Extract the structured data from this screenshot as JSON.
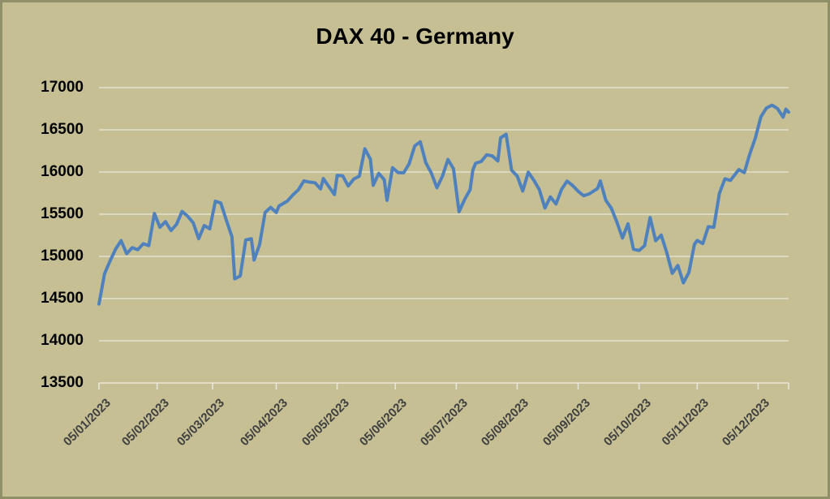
{
  "colors": {
    "background": "#c6bf94",
    "border": "#8f8f68",
    "gridline": "#e8e6da",
    "line": "#4f81bd",
    "title_text": "#000000",
    "y_label_text": "#000000",
    "x_label_text": "#3f3f3f"
  },
  "chart_data": {
    "type": "line",
    "title": "DAX 40 - Germany",
    "legend": "none",
    "grid": "horizontal",
    "y_axis": {
      "min": 13500,
      "max": 17000,
      "step": 500,
      "tick_labels": [
        "17000",
        "16500",
        "16000",
        "15500",
        "15000",
        "14500",
        "14000",
        "13500"
      ]
    },
    "x_axis": {
      "tick_labels": [
        "05/01/2023",
        "05/02/2023",
        "05/03/2023",
        "05/04/2023",
        "05/05/2023",
        "05/06/2023",
        "05/07/2023",
        "05/08/2023",
        "05/09/2023",
        "05/10/2023",
        "05/11/2023",
        "05/12/2023"
      ],
      "label_rotation_deg": -45,
      "date_format": "DD/MM/YYYY"
    },
    "x": [
      "05/01/2023",
      "09/01/2023",
      "11/01/2023",
      "13/01/2023",
      "17/01/2023",
      "19/01/2023",
      "23/01/2023",
      "25/01/2023",
      "27/01/2023",
      "31/01/2023",
      "02/02/2023",
      "06/02/2023",
      "08/02/2023",
      "10/02/2023",
      "14/02/2023",
      "16/02/2023",
      "20/02/2023",
      "22/02/2023",
      "24/02/2023",
      "28/02/2023",
      "02/03/2023",
      "06/03/2023",
      "08/03/2023",
      "10/03/2023",
      "14/03/2023",
      "15/03/2023",
      "17/03/2023",
      "21/03/2023",
      "23/03/2023",
      "24/03/2023",
      "28/03/2023",
      "30/03/2023",
      "03/04/2023",
      "05/04/2023",
      "06/04/2023",
      "11/04/2023",
      "13/04/2023",
      "17/04/2023",
      "19/04/2023",
      "21/04/2023",
      "25/04/2023",
      "27/04/2023",
      "28/04/2023",
      "02/05/2023",
      "04/05/2023",
      "05/05/2023",
      "09/05/2023",
      "11/05/2023",
      "15/05/2023",
      "17/05/2023",
      "19/05/2023",
      "23/05/2023",
      "24/05/2023",
      "26/05/2023",
      "30/05/2023",
      "31/05/2023",
      "02/06/2023",
      "06/06/2023",
      "08/06/2023",
      "12/06/2023",
      "14/06/2023",
      "16/06/2023",
      "20/06/2023",
      "22/06/2023",
      "26/06/2023",
      "28/06/2023",
      "30/06/2023",
      "04/07/2023",
      "06/07/2023",
      "10/07/2023",
      "12/07/2023",
      "13/07/2023",
      "14/07/2023",
      "18/07/2023",
      "20/07/2023",
      "24/07/2023",
      "26/07/2023",
      "27/07/2023",
      "31/07/2023",
      "02/08/2023",
      "04/08/2023",
      "08/08/2023",
      "10/08/2023",
      "14/08/2023",
      "16/08/2023",
      "18/08/2023",
      "22/08/2023",
      "24/08/2023",
      "28/08/2023",
      "30/08/2023",
      "01/09/2023",
      "05/09/2023",
      "07/09/2023",
      "11/09/2023",
      "14/09/2023",
      "15/09/2023",
      "19/09/2023",
      "21/09/2023",
      "25/09/2023",
      "27/09/2023",
      "29/09/2023",
      "03/10/2023",
      "05/10/2023",
      "09/10/2023",
      "11/10/2023",
      "13/10/2023",
      "17/10/2023",
      "19/10/2023",
      "23/10/2023",
      "25/10/2023",
      "27/10/2023",
      "31/10/2023",
      "02/11/2023",
      "03/11/2023",
      "07/11/2023",
      "09/11/2023",
      "13/11/2023",
      "15/11/2023",
      "17/11/2023",
      "21/11/2023",
      "24/11/2023",
      "28/11/2023",
      "30/11/2023",
      "04/12/2023",
      "06/12/2023",
      "08/12/2023",
      "12/12/2023",
      "14/12/2023",
      "18/12/2023",
      "19/12/2023",
      "20/12/2023"
    ],
    "y": [
      14436,
      14793,
      14947,
      15087,
      15187,
      15033,
      15103,
      15080,
      15150,
      15128,
      15509,
      15345,
      15412,
      15307,
      15381,
      15533,
      15477,
      15399,
      15210,
      15365,
      15327,
      15654,
      15632,
      15428,
      15232,
      14735,
      14768,
      15195,
      15210,
      14957,
      15142,
      15522,
      15581,
      15520,
      15597,
      15655,
      15729,
      15790,
      15895,
      15881,
      15872,
      15800,
      15922,
      15827,
      15734,
      15961,
      15955,
      15834,
      15917,
      15951,
      16275,
      16152,
      15842,
      15984,
      15909,
      15664,
      16051,
      15992,
      15990,
      16098,
      16310,
      16358,
      16111,
      15988,
      15813,
      15949,
      16148,
      16039,
      15529,
      15673,
      15790,
      16023,
      16105,
      16125,
      16204,
      16191,
      16131,
      16406,
      16447,
      16020,
      15952,
      15775,
      15997,
      15904,
      15789,
      15574,
      15705,
      15621,
      15793,
      15892,
      15840,
      15771,
      15719,
      15740,
      15805,
      15894,
      15664,
      15571,
      15405,
      15217,
      15387,
      15085,
      15070,
      15128,
      15460,
      15187,
      15252,
      15045,
      14800,
      14892,
      14687,
      14810,
      15143,
      15189,
      15152,
      15352,
      15345,
      15748,
      15919,
      15901,
      16029,
      15993,
      16215,
      16404,
      16656,
      16759,
      16792,
      16752,
      16650,
      16744,
      16710
    ]
  }
}
